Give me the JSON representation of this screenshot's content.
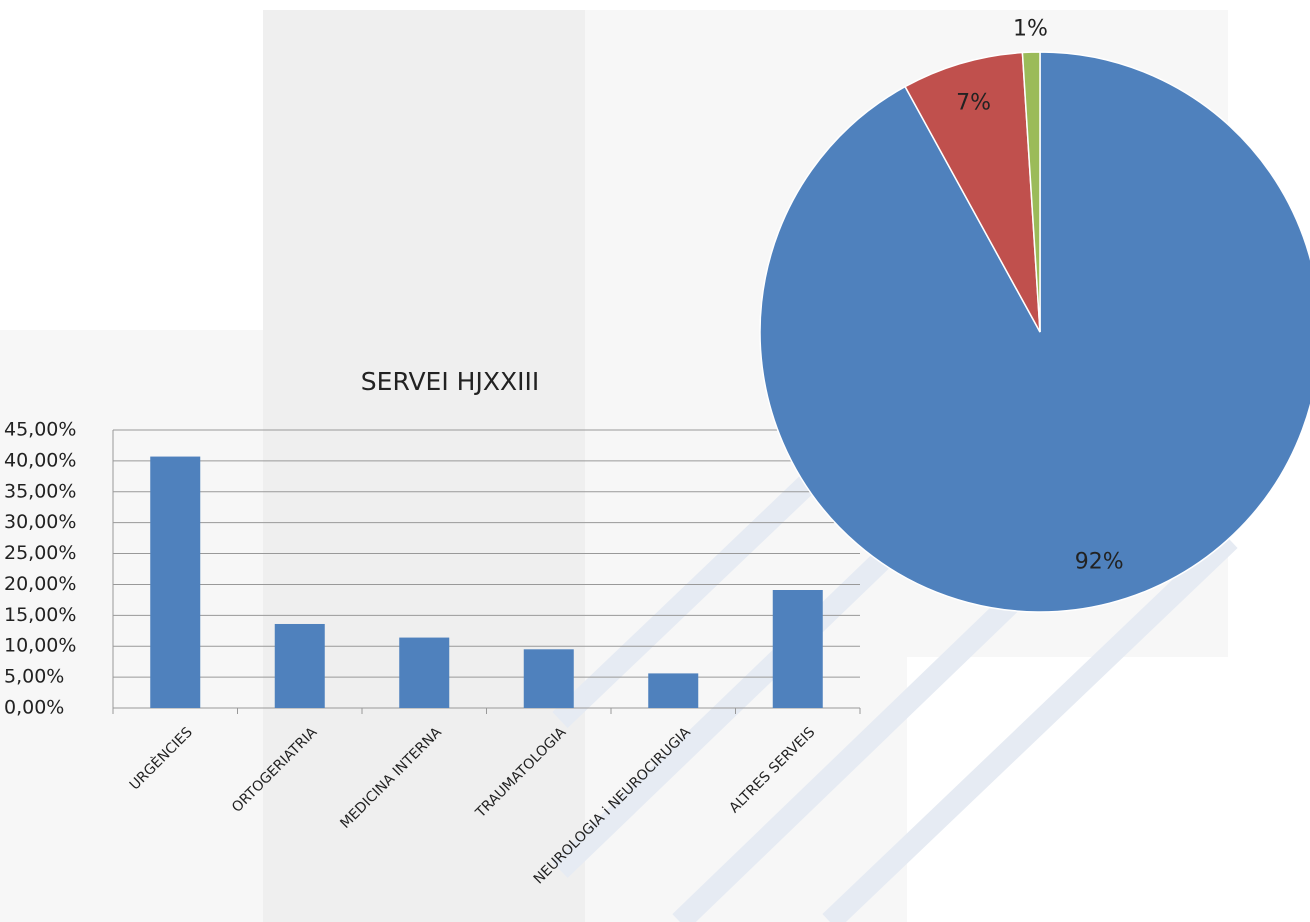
{
  "chart_data": [
    {
      "type": "bar",
      "title": "SERVEI HJXXIII",
      "categories": [
        "URGÈNCIES",
        "ORTOGERIATRIA",
        "MEDICINA INTERNA",
        "TRAUMATOLOGIA",
        "NEUROLOGIA i NEUROCIRUGIA",
        "ALTRES SERVEIS"
      ],
      "values": [
        40.7,
        13.6,
        11.4,
        9.5,
        5.6,
        19.1
      ],
      "color": "#4f81bd",
      "ylim": [
        0,
        45
      ],
      "yticks": [
        {
          "value": 0,
          "label": "0,00%"
        },
        {
          "value": 5,
          "label": "5,00%"
        },
        {
          "value": 10,
          "label": "10,00%"
        },
        {
          "value": 15,
          "label": "15,00%"
        },
        {
          "value": 20,
          "label": "20,00%"
        },
        {
          "value": 25,
          "label": "25,00%"
        },
        {
          "value": 30,
          "label": "30,00%"
        },
        {
          "value": 35,
          "label": "35,00%"
        },
        {
          "value": 40,
          "label": "40,00%"
        },
        {
          "value": 45,
          "label": "45,00%"
        }
      ],
      "grid": true
    },
    {
      "type": "pie",
      "values": [
        92,
        7,
        1
      ],
      "value_labels": [
        "92%",
        "7%",
        "1%"
      ],
      "colors": [
        "#4f81bd",
        "#c0504d",
        "#9bbb59"
      ]
    }
  ]
}
